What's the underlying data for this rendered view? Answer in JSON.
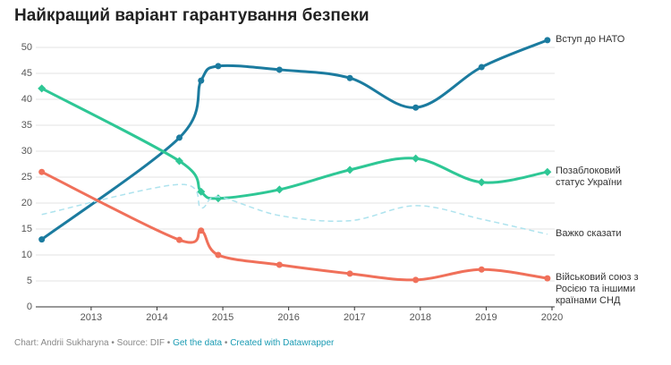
{
  "chart_data": {
    "type": "line",
    "title": "Найкращий варіант гарантування безпеки",
    "x": [
      2012.25,
      2014.34,
      2014.67,
      2014.93,
      2015.86,
      2016.93,
      2017.93,
      2018.93,
      2019.93
    ],
    "xlim": [
      2012.2,
      2020
    ],
    "xticks": [
      2013,
      2014,
      2015,
      2016,
      2017,
      2018,
      2019,
      2020
    ],
    "ylim": [
      0,
      50
    ],
    "yticks": [
      0,
      5,
      10,
      15,
      20,
      25,
      30,
      35,
      40,
      45,
      50
    ],
    "grid": true,
    "series": [
      {
        "name": "Вступ до НАТО",
        "color": "#1b7b9f",
        "marker": "circle",
        "values": [
          13,
          32.6,
          43.6,
          46.4,
          45.7,
          44.1,
          38.4,
          46.2,
          51.4
        ]
      },
      {
        "name": "Позаблоковий статус України",
        "color": "#2ec795",
        "marker": "diamond",
        "values": [
          42.1,
          28.1,
          22.2,
          20.9,
          22.6,
          26.4,
          28.6,
          24.0,
          26.0
        ]
      },
      {
        "name": "Важко сказати",
        "color": "#aee3ee",
        "dashed": true,
        "values": [
          17.8,
          23.6,
          19.1,
          21.2,
          17.6,
          16.6,
          19.5,
          16.9,
          14.0
        ]
      },
      {
        "name": "Військовий союз з Росією та іншими країнами СНД",
        "color": "#f0705a",
        "marker": "circle",
        "values": [
          26.0,
          12.9,
          14.7,
          10.0,
          8.1,
          6.4,
          5.2,
          7.2,
          5.5
        ]
      }
    ],
    "footer": {
      "credit": "Chart: Andrii Sukharyna • Source: DIF •",
      "link1": "Get the data",
      "sep": "•",
      "link2": "Created with Datawrapper"
    }
  }
}
